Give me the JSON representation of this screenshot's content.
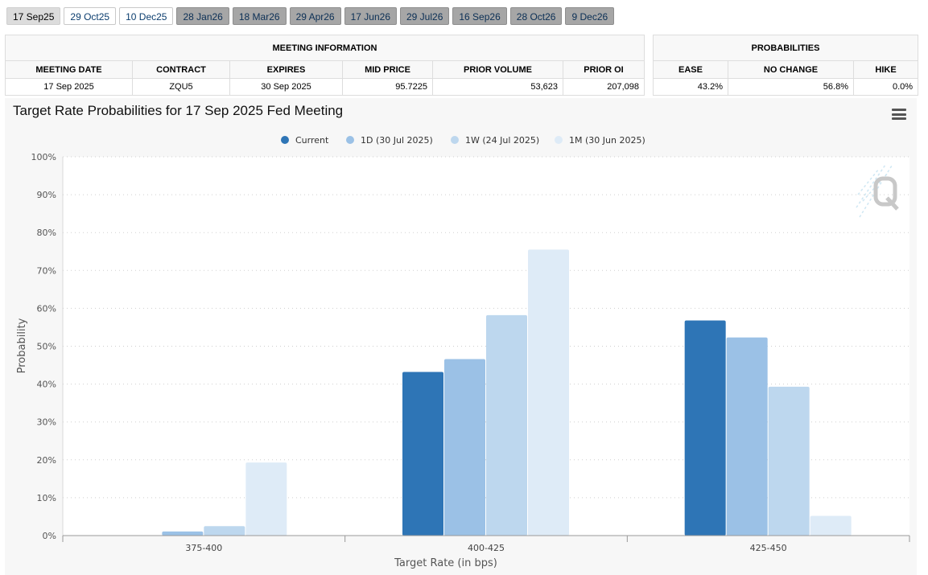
{
  "tabs": [
    {
      "label": "17 Sep25",
      "state": "selected"
    },
    {
      "label": "29 Oct25",
      "state": "near"
    },
    {
      "label": "10 Dec25",
      "state": "near"
    },
    {
      "label": "28 Jan26",
      "state": "far"
    },
    {
      "label": "18 Mar26",
      "state": "far"
    },
    {
      "label": "29 Apr26",
      "state": "far"
    },
    {
      "label": "17 Jun26",
      "state": "far"
    },
    {
      "label": "29 Jul26",
      "state": "far"
    },
    {
      "label": "16 Sep26",
      "state": "far"
    },
    {
      "label": "28 Oct26",
      "state": "far"
    },
    {
      "label": "9 Dec26",
      "state": "far"
    }
  ],
  "meeting_info": {
    "title": "MEETING INFORMATION",
    "headers": {
      "meeting_date": "MEETING DATE",
      "contract": "CONTRACT",
      "expires": "EXPIRES",
      "mid_price": "MID PRICE",
      "prior_volume": "PRIOR VOLUME",
      "prior_oi": "PRIOR OI"
    },
    "values": {
      "meeting_date": "17 Sep 2025",
      "contract": "ZQU5",
      "expires": "30 Sep 2025",
      "mid_price": "95.7225",
      "prior_volume": "53,623",
      "prior_oi": "207,098"
    }
  },
  "probabilities": {
    "title": "PROBABILITIES",
    "headers": {
      "ease": "EASE",
      "no_change": "NO CHANGE",
      "hike": "HIKE"
    },
    "values": {
      "ease": "43.2%",
      "no_change": "56.8%",
      "hike": "0.0%"
    }
  },
  "chart_title": "Target Rate Probabilities for 17 Sep 2025 Fed Meeting",
  "menu_icon": "hamburger-menu-icon",
  "watermark_icon": "quikstrike-q-logo",
  "chart_data": {
    "type": "bar",
    "title": "Target Rate Probabilities for 17 Sep 2025 Fed Meeting",
    "xlabel": "Target Rate (in bps)",
    "ylabel": "Probability",
    "categories": [
      "375-400",
      "400-425",
      "425-450"
    ],
    "ylim": [
      0,
      100
    ],
    "yticks": [
      "0%",
      "10%",
      "20%",
      "30%",
      "40%",
      "50%",
      "60%",
      "70%",
      "80%",
      "90%",
      "100%"
    ],
    "grid": true,
    "legend_position": "top-center",
    "series": [
      {
        "name": "Current",
        "color": "#2e75b6",
        "values": [
          0.0,
          43.2,
          56.8
        ]
      },
      {
        "name": "1D (30 Jul 2025)",
        "color": "#9bc1e6",
        "values": [
          1.1,
          46.6,
          52.3
        ]
      },
      {
        "name": "1W (24 Jul 2025)",
        "color": "#bdd7ee",
        "values": [
          2.5,
          58.2,
          39.3
        ]
      },
      {
        "name": "1M (30 Jun 2025)",
        "color": "#deebf7",
        "values": [
          19.3,
          75.5,
          5.2
        ]
      }
    ]
  }
}
